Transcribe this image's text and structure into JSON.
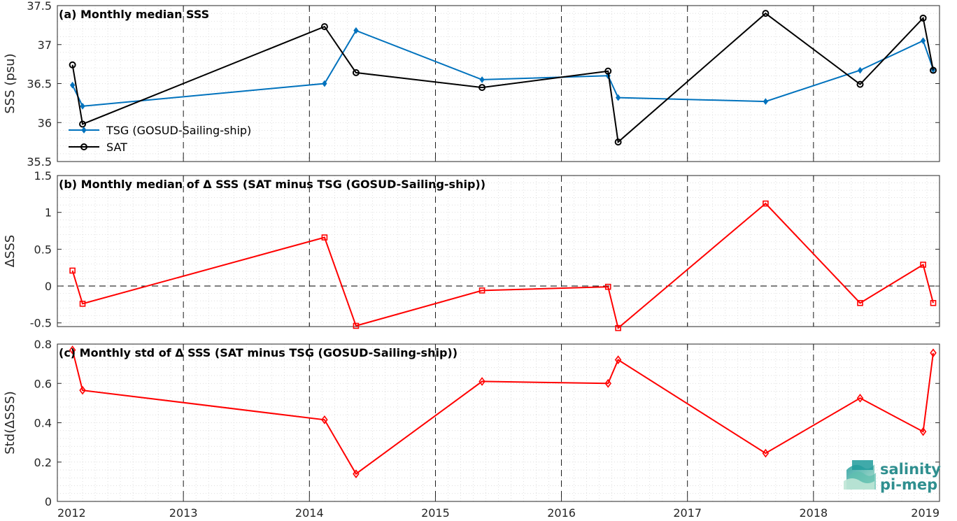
{
  "chart_data": [
    {
      "type": "line",
      "title": "(a) Monthly median SSS",
      "ylabel": "SSS (psu)",
      "xlim": [
        2012,
        2019
      ],
      "ylim": [
        35.5,
        37.5
      ],
      "x_ticks": [
        "2012",
        "2013",
        "2014",
        "2015",
        "2016",
        "2017",
        "2018",
        "2019"
      ],
      "y_ticks": [
        "35.5",
        "36",
        "36.5",
        "37",
        "37.5"
      ],
      "grid": true,
      "legend_position": "lower-left",
      "series": [
        {
          "name": "TSG (GOSUD-Sailing-ship)",
          "color": "#0072bd",
          "marker": "diamond",
          "x": [
            2012.12,
            2012.2,
            2014.12,
            2014.37,
            2015.37,
            2016.37,
            2016.45,
            2017.62,
            2018.37,
            2018.87,
            2018.95
          ],
          "values": [
            36.48,
            36.21,
            36.5,
            37.18,
            36.55,
            36.6,
            36.32,
            36.27,
            36.67,
            37.05,
            36.68
          ]
        },
        {
          "name": "SAT",
          "color": "#000000",
          "marker": "circle",
          "x": [
            2012.12,
            2012.2,
            2014.12,
            2014.37,
            2015.37,
            2016.37,
            2016.45,
            2017.62,
            2018.37,
            2018.87,
            2018.95
          ],
          "values": [
            36.74,
            35.98,
            37.23,
            36.64,
            36.45,
            36.66,
            35.75,
            37.4,
            36.49,
            37.34,
            36.67
          ]
        }
      ]
    },
    {
      "type": "line",
      "title": "(b) Monthly median of Δ SSS (SAT minus TSG (GOSUD-Sailing-ship))",
      "ylabel": "ΔSSS",
      "xlim": [
        2012,
        2019
      ],
      "ylim": [
        -0.55,
        1.5
      ],
      "x_ticks": [
        "2012",
        "2013",
        "2014",
        "2015",
        "2016",
        "2017",
        "2018",
        "2019"
      ],
      "y_ticks": [
        "-0.5",
        "0",
        "0.5",
        "1",
        "1.5"
      ],
      "grid": true,
      "zero_line": true,
      "series": [
        {
          "color": "#ff0000",
          "marker": "square",
          "x": [
            2012.12,
            2012.2,
            2014.12,
            2014.37,
            2015.37,
            2016.37,
            2016.45,
            2017.62,
            2018.37,
            2018.87,
            2018.95
          ],
          "values": [
            0.21,
            -0.24,
            0.66,
            -0.54,
            -0.06,
            -0.01,
            -0.57,
            1.12,
            -0.23,
            0.29,
            -0.23
          ]
        }
      ]
    },
    {
      "type": "line",
      "title": "(c) Monthly std of Δ SSS (SAT minus TSG (GOSUD-Sailing-ship))",
      "ylabel": "Std(ΔSSS)",
      "xlim": [
        2012,
        2019
      ],
      "ylim": [
        0,
        0.8
      ],
      "x_ticks": [
        "2012",
        "2013",
        "2014",
        "2015",
        "2016",
        "2017",
        "2018",
        "2019"
      ],
      "y_ticks": [
        "0",
        "0.2",
        "0.4",
        "0.6",
        "0.8"
      ],
      "grid": true,
      "series": [
        {
          "color": "#ff0000",
          "marker": "diamond",
          "x": [
            2012.12,
            2012.2,
            2014.12,
            2014.37,
            2015.37,
            2016.37,
            2016.45,
            2017.62,
            2018.37,
            2018.87,
            2018.95
          ],
          "values": [
            0.77,
            0.565,
            0.415,
            0.14,
            0.61,
            0.6,
            0.72,
            0.245,
            0.525,
            0.355,
            0.755
          ]
        }
      ]
    }
  ],
  "logo": {
    "line1": "salinity",
    "line2": "pi-mep",
    "color": "#2f8f8f",
    "icon": "wave-logo-icon"
  }
}
